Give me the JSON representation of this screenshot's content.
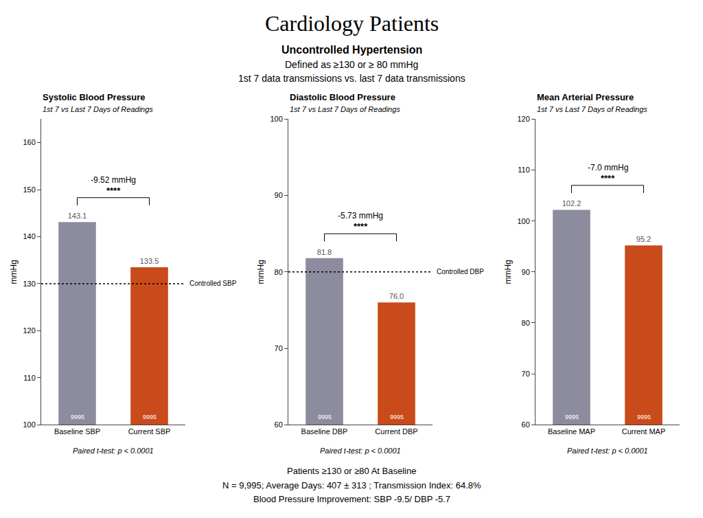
{
  "title": "Cardiology Patients",
  "subtitle": [
    "Uncontrolled Hypertension",
    "Defined as ≥130 or ≥ 80 mmHg",
    "1st 7 data transmissions vs. last 7 data transmissions"
  ],
  "annotations": [
    "Patients ≥130 or ≥80 At Baseline",
    "N = 9,995; Average Days: 407 ± 313 ; Transmission Index: 64.8%",
    "Blood Pressure Improvement: SBP -9.5/ DBP -5.7"
  ],
  "chart_data": [
    {
      "type": "bar",
      "title": "Systolic Blood Pressure",
      "subtitle": "1st 7 vs Last 7 Days of Readings",
      "categories": [
        "Baseline SBP",
        "Current SBP"
      ],
      "values": [
        143.1,
        133.5
      ],
      "colors": [
        "#8c8c9e",
        "#c94a1a"
      ],
      "data_labels": true,
      "n": [
        9995,
        9995
      ],
      "ylim": [
        100,
        165
      ],
      "yticks": [
        100,
        110,
        120,
        130,
        140,
        150,
        160
      ],
      "ylabel": "mmHg",
      "grid": false,
      "ref_line": 130,
      "ref_label": "Controlled SBP",
      "diff_text": "-9.52 mmHg",
      "sig_text": "****",
      "note": "Paired t-test: p < 0.0001"
    },
    {
      "type": "bar",
      "title": "Diastolic Blood Pressure",
      "subtitle": "1st 7 vs Last 7 Days of Readings",
      "categories": [
        "Baseline DBP",
        "Current DBP"
      ],
      "values": [
        81.8,
        76.0
      ],
      "value_labels": [
        "81.8",
        "76.0"
      ],
      "colors": [
        "#8c8c9e",
        "#c94a1a"
      ],
      "data_labels": true,
      "n": [
        9995,
        9995
      ],
      "ylim": [
        60,
        100
      ],
      "yticks": [
        60,
        70,
        80,
        90,
        100
      ],
      "ylabel": "mmHg",
      "grid": false,
      "ref_line": 80,
      "ref_label": "Controlled DBP",
      "diff_text": "-5.73 mmHg",
      "sig_text": "****",
      "note": "Paired t-test: p < 0.0001"
    },
    {
      "type": "bar",
      "title": "Mean Arterial Pressure",
      "subtitle": "1st 7 vs Last 7 Days of Readings",
      "categories": [
        "Baseline MAP",
        "Current MAP"
      ],
      "values": [
        102.2,
        95.2
      ],
      "colors": [
        "#8c8c9e",
        "#c94a1a"
      ],
      "data_labels": true,
      "n": [
        9995,
        9995
      ],
      "ylim": [
        60,
        120
      ],
      "yticks": [
        60,
        70,
        80,
        90,
        100,
        110,
        120
      ],
      "ylabel": "mmHg",
      "grid": false,
      "diff_text": "-7.0 mmHg",
      "sig_text": "****",
      "note": "Paired t-test: p < 0.0001"
    }
  ]
}
